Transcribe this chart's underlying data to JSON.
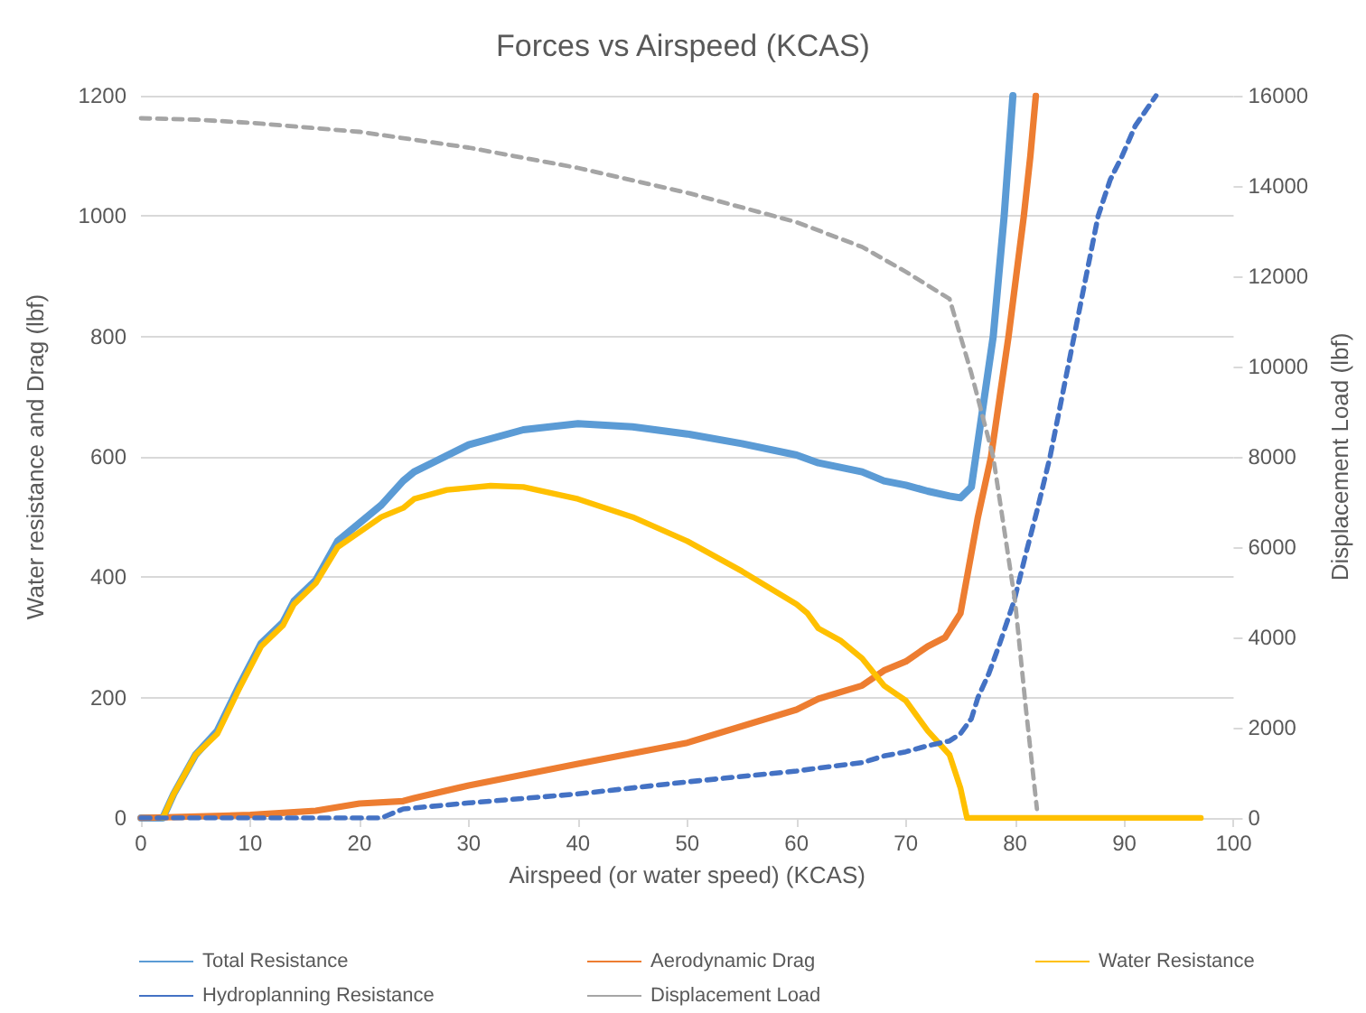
{
  "chart_data": {
    "type": "line",
    "title": "Forces vs Airspeed (KCAS)",
    "xlabel": "Airspeed (or water speed) (KCAS)",
    "ylabel": "Water resistance and Drag (lbf)",
    "y2label": "Displacement Load (lbf)",
    "xlim": [
      0,
      100
    ],
    "xticks": [
      0,
      10,
      20,
      30,
      40,
      50,
      60,
      70,
      80,
      90,
      100
    ],
    "ylim": [
      0,
      1200
    ],
    "yticks": [
      0,
      200,
      400,
      600,
      800,
      1000,
      1200
    ],
    "y2lim": [
      0,
      16000
    ],
    "y2ticks": [
      0,
      2000,
      4000,
      6000,
      8000,
      10000,
      12000,
      14000,
      16000
    ],
    "grid": "y",
    "legend": "bottom",
    "marker": "none",
    "series": [
      {
        "name": "Total Resistance",
        "color": "#5b9bd5",
        "line_style": "solid",
        "x": [
          0,
          2,
          3,
          5,
          7,
          9,
          11,
          13,
          14,
          16,
          18,
          20,
          22,
          24,
          25,
          30,
          35,
          40,
          45,
          50,
          55,
          60,
          62,
          66,
          68,
          70,
          72,
          74,
          75,
          76,
          76.4,
          77.2,
          78,
          79,
          79.8
        ],
        "values": [
          0,
          0,
          40,
          105,
          145,
          220,
          290,
          325,
          360,
          395,
          460,
          490,
          520,
          560,
          575,
          620,
          645,
          655,
          650,
          638,
          622,
          603,
          590,
          575,
          560,
          553,
          543,
          535,
          532,
          550,
          600,
          700,
          800,
          1000,
          1200
        ]
      },
      {
        "name": "Aerodynamic Drag",
        "color": "#ed7d31",
        "line_style": "solid",
        "x": [
          0,
          10,
          16,
          18,
          20,
          24,
          25,
          30,
          40,
          50,
          60,
          62,
          66,
          68,
          70,
          72,
          73.6,
          75,
          75.6,
          76.6,
          77.8,
          78.6,
          79.4,
          80.1,
          80.8,
          81.4,
          81.9
        ],
        "values": [
          0,
          5,
          12,
          18,
          24,
          28,
          33,
          54,
          90,
          125,
          180,
          198,
          220,
          245,
          260,
          285,
          300,
          340,
          400,
          500,
          600,
          700,
          800,
          900,
          1000,
          1100,
          1200
        ]
      },
      {
        "name": "Water Resistance",
        "color": "#ffc000",
        "line_style": "solid",
        "x": [
          2,
          3,
          5,
          7,
          9,
          11,
          13,
          14,
          16,
          18,
          20,
          22,
          24,
          25,
          28,
          32,
          35,
          40,
          45,
          50,
          55,
          60,
          61,
          62,
          64,
          66,
          68,
          70,
          72,
          74,
          75,
          75.6,
          97
        ],
        "values": [
          0,
          40,
          105,
          140,
          215,
          285,
          320,
          355,
          390,
          450,
          475,
          500,
          515,
          530,
          545,
          552,
          550,
          530,
          500,
          460,
          410,
          355,
          340,
          315,
          295,
          265,
          220,
          195,
          145,
          105,
          50,
          0,
          0
        ]
      },
      {
        "name": "Hydroplanning Resistance",
        "color": "#4472c4",
        "line_style": "dashed",
        "x": [
          0,
          22,
          24,
          30,
          40,
          50,
          60,
          62,
          66,
          68,
          70,
          72,
          74,
          75,
          76,
          76.6,
          77.6,
          78.6,
          79.9,
          81,
          82,
          83.2,
          84.3,
          85.4,
          86.5,
          87.6,
          88.7,
          89.8,
          91,
          92.9
        ],
        "values": [
          0,
          0,
          15,
          25,
          40,
          60,
          78,
          83,
          92,
          103,
          110,
          120,
          128,
          140,
          165,
          200,
          240,
          290,
          360,
          440,
          510,
          600,
          700,
          800,
          900,
          1000,
          1060,
          1100,
          1150,
          1200
        ]
      },
      {
        "name": "Displacement Load",
        "color": "#a5a5a5",
        "line_style": "dashed",
        "axis": "y2",
        "x": [
          0,
          5,
          10,
          20,
          30,
          40,
          50,
          60,
          66,
          70,
          74,
          76,
          78,
          80,
          81,
          82
        ],
        "values": [
          15500,
          15470,
          15400,
          15200,
          14850,
          14400,
          13850,
          13200,
          12650,
          12100,
          11500,
          9850,
          8000,
          4800,
          2400,
          200
        ]
      }
    ]
  }
}
